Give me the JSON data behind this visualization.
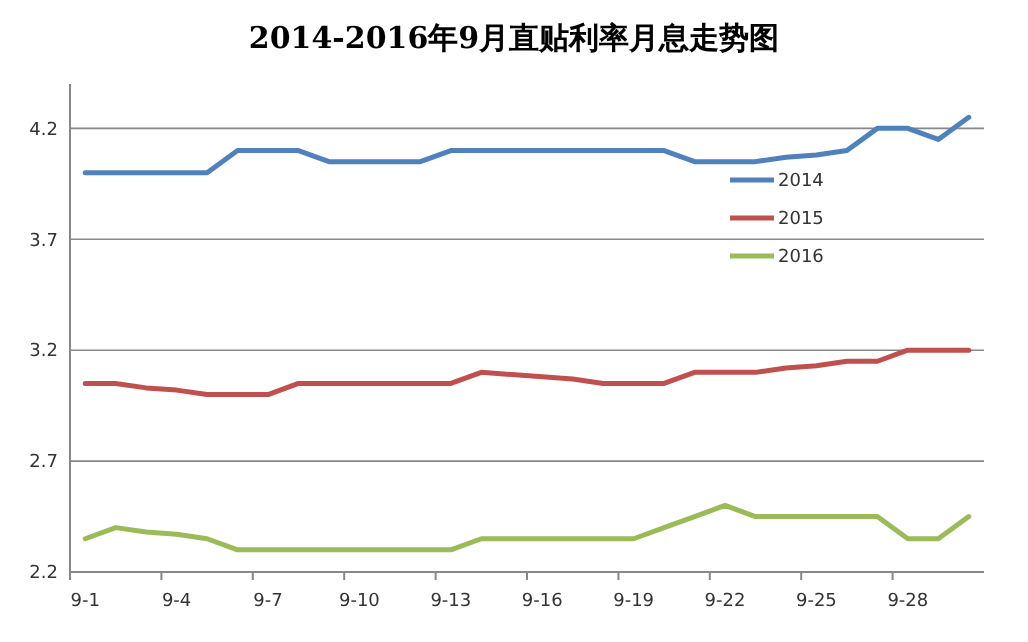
{
  "chart_data": {
    "type": "line",
    "title": "2014-2016年9月直贴利率月息走势图",
    "categories": [
      "9-1",
      null,
      null,
      "9-4",
      null,
      null,
      "9-7",
      null,
      null,
      "9-10",
      null,
      null,
      "9-13",
      null,
      null,
      "9-16",
      null,
      null,
      "9-19",
      null,
      null,
      "9-22",
      null,
      null,
      "9-25",
      null,
      null,
      "9-28",
      null,
      null
    ],
    "series": [
      {
        "name": "2014",
        "color": "#4f81bd",
        "values": [
          4.0,
          4.0,
          4.0,
          4.0,
          4.0,
          4.1,
          4.1,
          4.1,
          4.05,
          4.05,
          4.05,
          4.05,
          4.1,
          4.1,
          4.1,
          4.1,
          4.1,
          4.1,
          4.1,
          4.1,
          4.05,
          4.05,
          4.05,
          4.07,
          4.08,
          4.1,
          4.2,
          4.2,
          4.15,
          4.25
        ]
      },
      {
        "name": "2015",
        "color": "#c0504d",
        "values": [
          3.05,
          3.05,
          3.03,
          3.02,
          3.0,
          3.0,
          3.0,
          3.05,
          3.05,
          3.05,
          3.05,
          3.05,
          3.05,
          3.1,
          3.09,
          3.08,
          3.07,
          3.05,
          3.05,
          3.05,
          3.1,
          3.1,
          3.1,
          3.12,
          3.13,
          3.15,
          3.15,
          3.2,
          3.2,
          3.2
        ]
      },
      {
        "name": "2016",
        "color": "#9bbb59",
        "values": [
          2.35,
          2.4,
          2.38,
          2.37,
          2.35,
          2.3,
          2.3,
          2.3,
          2.3,
          2.3,
          2.3,
          2.3,
          2.3,
          2.35,
          2.35,
          2.35,
          2.35,
          2.35,
          2.35,
          2.4,
          2.45,
          2.5,
          2.45,
          2.45,
          2.45,
          2.45,
          2.45,
          2.35,
          2.35,
          2.45
        ]
      }
    ],
    "ylim": [
      2.2,
      4.4
    ],
    "yticks": [
      2.2,
      2.7,
      3.2,
      3.7,
      4.2
    ],
    "grid": "y",
    "legend": "top right",
    "marker": "none",
    "line_style": "solid"
  }
}
